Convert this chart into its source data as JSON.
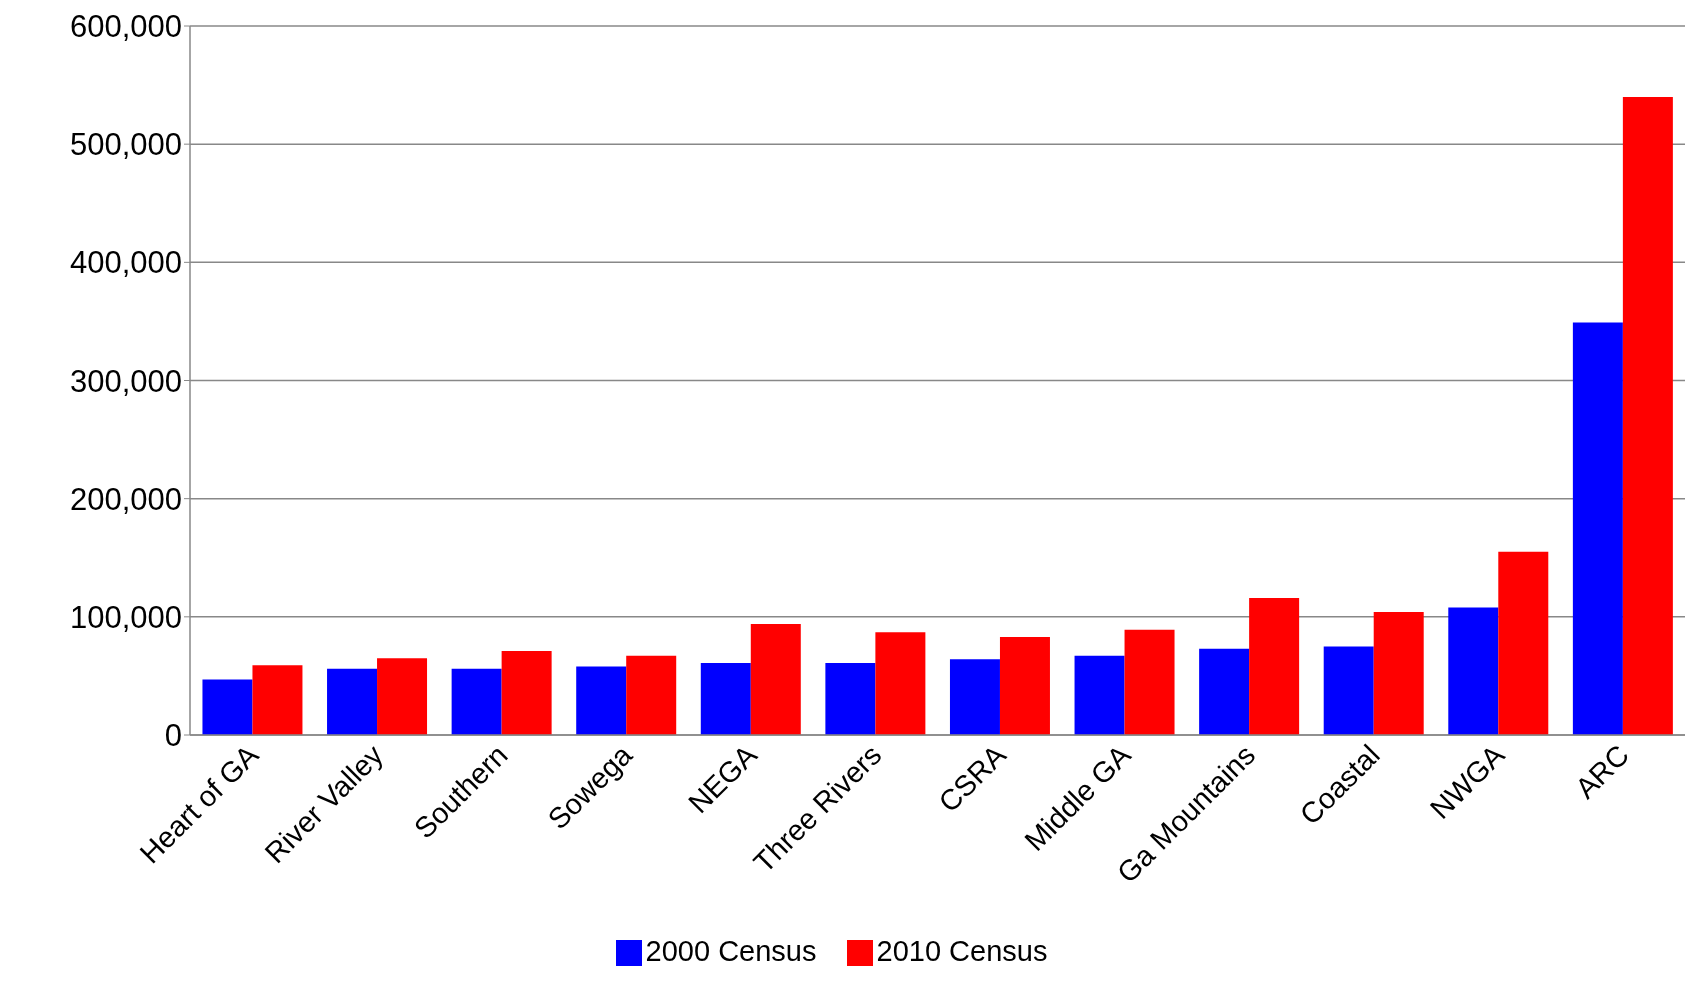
{
  "chart_data": {
    "type": "bar",
    "categories": [
      "Heart of GA",
      "River Valley",
      "Southern",
      "Sowega",
      "NEGA",
      "Three Rivers",
      "CSRA",
      "Middle GA",
      "Ga Mountains",
      "Coastal",
      "NWGA",
      "ARC"
    ],
    "series": [
      {
        "name": "2000 Census",
        "color": "#0000ff",
        "values": [
          47000,
          56000,
          56000,
          58000,
          61000,
          61000,
          64000,
          67000,
          73000,
          75000,
          108000,
          349000
        ]
      },
      {
        "name": "2010 Census",
        "color": "#ff0000",
        "values": [
          59000,
          65000,
          71000,
          67000,
          94000,
          87000,
          83000,
          89000,
          116000,
          104000,
          155000,
          540000
        ]
      }
    ],
    "ylim": [
      0,
      600000
    ],
    "yticks": [
      0,
      {
        "value": 100000,
        "label": "100,000"
      },
      {
        "value": 200000,
        "label": "200,000"
      },
      {
        "value": 300000,
        "label": "300,000"
      },
      {
        "value": 400000,
        "label": "400,000"
      },
      {
        "value": 500000,
        "label": "500,000"
      },
      {
        "value": 600000,
        "label": "600,000"
      }
    ],
    "grid": "y",
    "legend": "bottom"
  }
}
